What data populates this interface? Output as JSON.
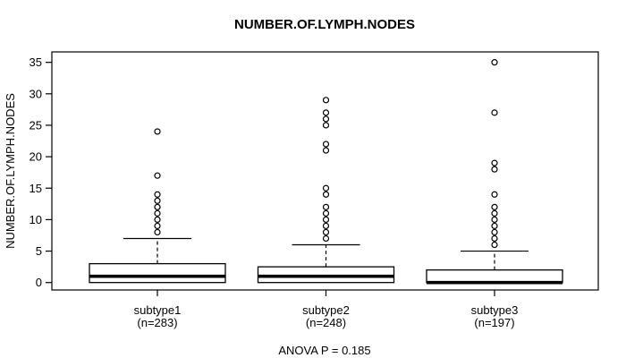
{
  "chart_data": {
    "type": "boxplot",
    "title": "NUMBER.OF.LYMPH.NODES",
    "ylabel": "NUMBER.OF.LYMPH.NODES",
    "footer": "ANOVA P = 0.185",
    "ylim": [
      0,
      35
    ],
    "yticks": [
      0,
      5,
      10,
      15,
      20,
      25,
      30,
      35
    ],
    "grid": false,
    "colors": {
      "stroke": "#000000",
      "box_fill": "#ffffff",
      "background": "#ffffff"
    },
    "groups": [
      {
        "label": "subtype1",
        "sublabel": "(n=283)",
        "n": 283,
        "q1": 0,
        "median": 1,
        "q3": 3,
        "whisker_low": 0,
        "whisker_high": 7,
        "outliers": [
          8,
          9,
          10,
          11,
          12,
          13,
          14,
          17,
          24
        ]
      },
      {
        "label": "subtype2",
        "sublabel": "(n=248)",
        "n": 248,
        "q1": 0,
        "median": 1,
        "q3": 2.5,
        "whisker_low": 0,
        "whisker_high": 6,
        "outliers": [
          7,
          8,
          9,
          10,
          11,
          12,
          14,
          15,
          21,
          22,
          25,
          26,
          27,
          29
        ]
      },
      {
        "label": "subtype3",
        "sublabel": "(n=197)",
        "n": 197,
        "q1": 0,
        "median": 0,
        "q3": 2,
        "whisker_low": 0,
        "whisker_high": 5,
        "outliers": [
          6,
          7,
          8,
          9,
          10,
          11,
          12,
          14,
          18,
          19,
          27,
          35
        ]
      }
    ]
  }
}
